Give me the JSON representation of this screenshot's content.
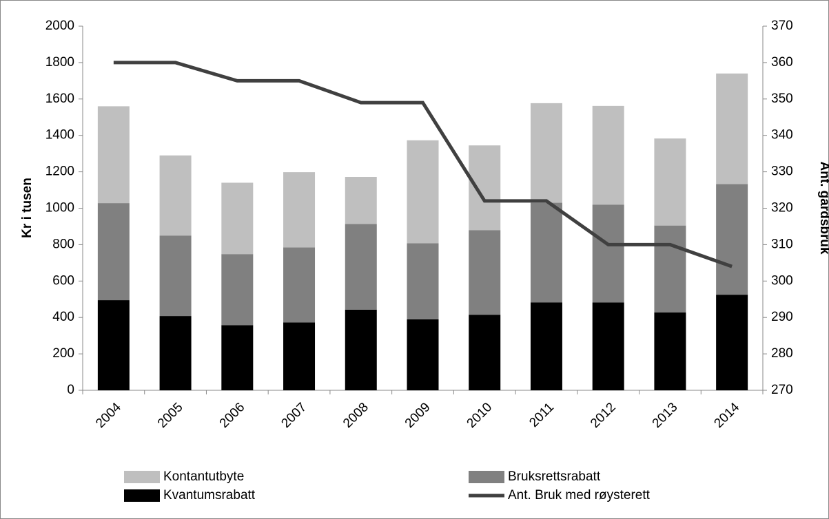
{
  "chart_data": {
    "type": "bar",
    "stacked": true,
    "categories": [
      "2004",
      "2005",
      "2006",
      "2007",
      "2008",
      "2009",
      "2010",
      "2011",
      "2012",
      "2013",
      "2014"
    ],
    "ylabel": "Kr i tusen",
    "y2label": "Ant. gardsbruk",
    "ylim": [
      0,
      2000
    ],
    "yticks": [
      0,
      200,
      400,
      600,
      800,
      1000,
      1200,
      1400,
      1600,
      1800,
      2000
    ],
    "y2lim": [
      270,
      370
    ],
    "y2ticks": [
      270,
      280,
      290,
      300,
      310,
      320,
      330,
      340,
      350,
      360,
      370
    ],
    "grid": false,
    "legend": "bottom",
    "series": [
      {
        "name": "Kvantumsrabatt",
        "color": "#000000",
        "values": [
          495,
          408,
          358,
          373,
          443,
          390,
          415,
          483,
          482,
          428,
          525
        ]
      },
      {
        "name": "Bruksrettsrabatt",
        "color": "#808080",
        "values": [
          533,
          442,
          390,
          412,
          470,
          418,
          465,
          547,
          538,
          477,
          608
        ]
      },
      {
        "name": "Kontantutbyte",
        "color": "#bfbfbf",
        "values": [
          532,
          440,
          392,
          413,
          259,
          565,
          465,
          547,
          542,
          478,
          607
        ]
      },
      {
        "name": "Ant. Bruk med røysterett",
        "type": "line",
        "axis": "y2",
        "color": "#404040",
        "values": [
          360,
          360,
          355,
          355,
          349,
          349,
          322,
          322,
          310,
          310,
          304
        ]
      }
    ]
  }
}
